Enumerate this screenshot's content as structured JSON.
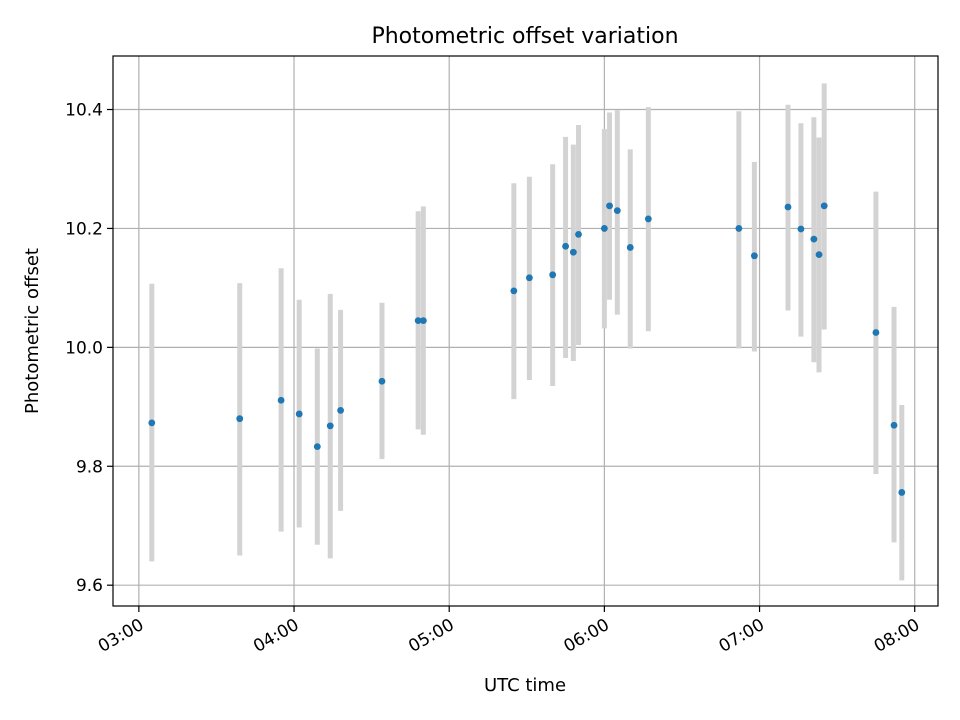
{
  "chart_data": {
    "type": "scatter",
    "title": "Photometric offset variation",
    "xlabel": "UTC time",
    "ylabel": "Photometric offset",
    "xlim": [
      "02:50",
      "08:09"
    ],
    "ylim": [
      9.565,
      10.49
    ],
    "x_ticks": [
      "03:00",
      "04:00",
      "05:00",
      "06:00",
      "07:00",
      "08:00"
    ],
    "y_ticks": [
      9.6,
      9.8,
      10.0,
      10.2,
      10.4
    ],
    "y_tick_labels": [
      "9.6",
      "9.8",
      "10.0",
      "10.2",
      "10.4"
    ],
    "grid": true,
    "point_color": "#1f77b4",
    "errorbar_color": "#d3d3d3",
    "points": [
      {
        "x": "03:05",
        "y": 9.873,
        "low": 9.64,
        "high": 10.107
      },
      {
        "x": "03:39",
        "y": 9.88,
        "low": 9.65,
        "high": 10.108
      },
      {
        "x": "03:55",
        "y": 9.911,
        "low": 9.69,
        "high": 10.133
      },
      {
        "x": "04:02",
        "y": 9.888,
        "low": 9.697,
        "high": 10.08
      },
      {
        "x": "04:09",
        "y": 9.833,
        "low": 9.668,
        "high": 9.998
      },
      {
        "x": "04:14",
        "y": 9.868,
        "low": 9.645,
        "high": 10.09
      },
      {
        "x": "04:18",
        "y": 9.894,
        "low": 9.725,
        "high": 10.063
      },
      {
        "x": "04:34",
        "y": 9.943,
        "low": 9.812,
        "high": 10.075
      },
      {
        "x": "04:48",
        "y": 10.045,
        "low": 9.862,
        "high": 10.229
      },
      {
        "x": "04:50",
        "y": 10.045,
        "low": 9.853,
        "high": 10.237
      },
      {
        "x": "05:25",
        "y": 10.095,
        "low": 9.913,
        "high": 10.276
      },
      {
        "x": "05:31",
        "y": 10.117,
        "low": 9.945,
        "high": 10.287
      },
      {
        "x": "05:40",
        "y": 10.122,
        "low": 9.935,
        "high": 10.308
      },
      {
        "x": "05:45",
        "y": 10.17,
        "low": 9.982,
        "high": 10.354
      },
      {
        "x": "05:48",
        "y": 10.16,
        "low": 9.977,
        "high": 10.341
      },
      {
        "x": "05:50",
        "y": 10.19,
        "low": 10.004,
        "high": 10.374
      },
      {
        "x": "06:00",
        "y": 10.2,
        "low": 10.032,
        "high": 10.367
      },
      {
        "x": "06:02",
        "y": 10.238,
        "low": 10.08,
        "high": 10.395
      },
      {
        "x": "06:05",
        "y": 10.23,
        "low": 10.055,
        "high": 10.399
      },
      {
        "x": "06:10",
        "y": 10.168,
        "low": 9.998,
        "high": 10.333
      },
      {
        "x": "06:17",
        "y": 10.216,
        "low": 10.027,
        "high": 10.404
      },
      {
        "x": "06:52",
        "y": 10.2,
        "low": 9.998,
        "high": 10.397
      },
      {
        "x": "06:58",
        "y": 10.154,
        "low": 9.993,
        "high": 10.312
      },
      {
        "x": "07:11",
        "y": 10.236,
        "low": 10.062,
        "high": 10.408
      },
      {
        "x": "07:16",
        "y": 10.199,
        "low": 10.018,
        "high": 10.377
      },
      {
        "x": "07:21",
        "y": 10.182,
        "low": 9.975,
        "high": 10.387
      },
      {
        "x": "07:23",
        "y": 10.156,
        "low": 9.958,
        "high": 10.353
      },
      {
        "x": "07:25",
        "y": 10.238,
        "low": 10.03,
        "high": 10.444
      },
      {
        "x": "07:45",
        "y": 10.025,
        "low": 9.787,
        "high": 10.262
      },
      {
        "x": "07:52",
        "y": 9.869,
        "low": 9.672,
        "high": 10.068
      },
      {
        "x": "07:55",
        "y": 9.756,
        "low": 9.608,
        "high": 9.903
      }
    ]
  }
}
